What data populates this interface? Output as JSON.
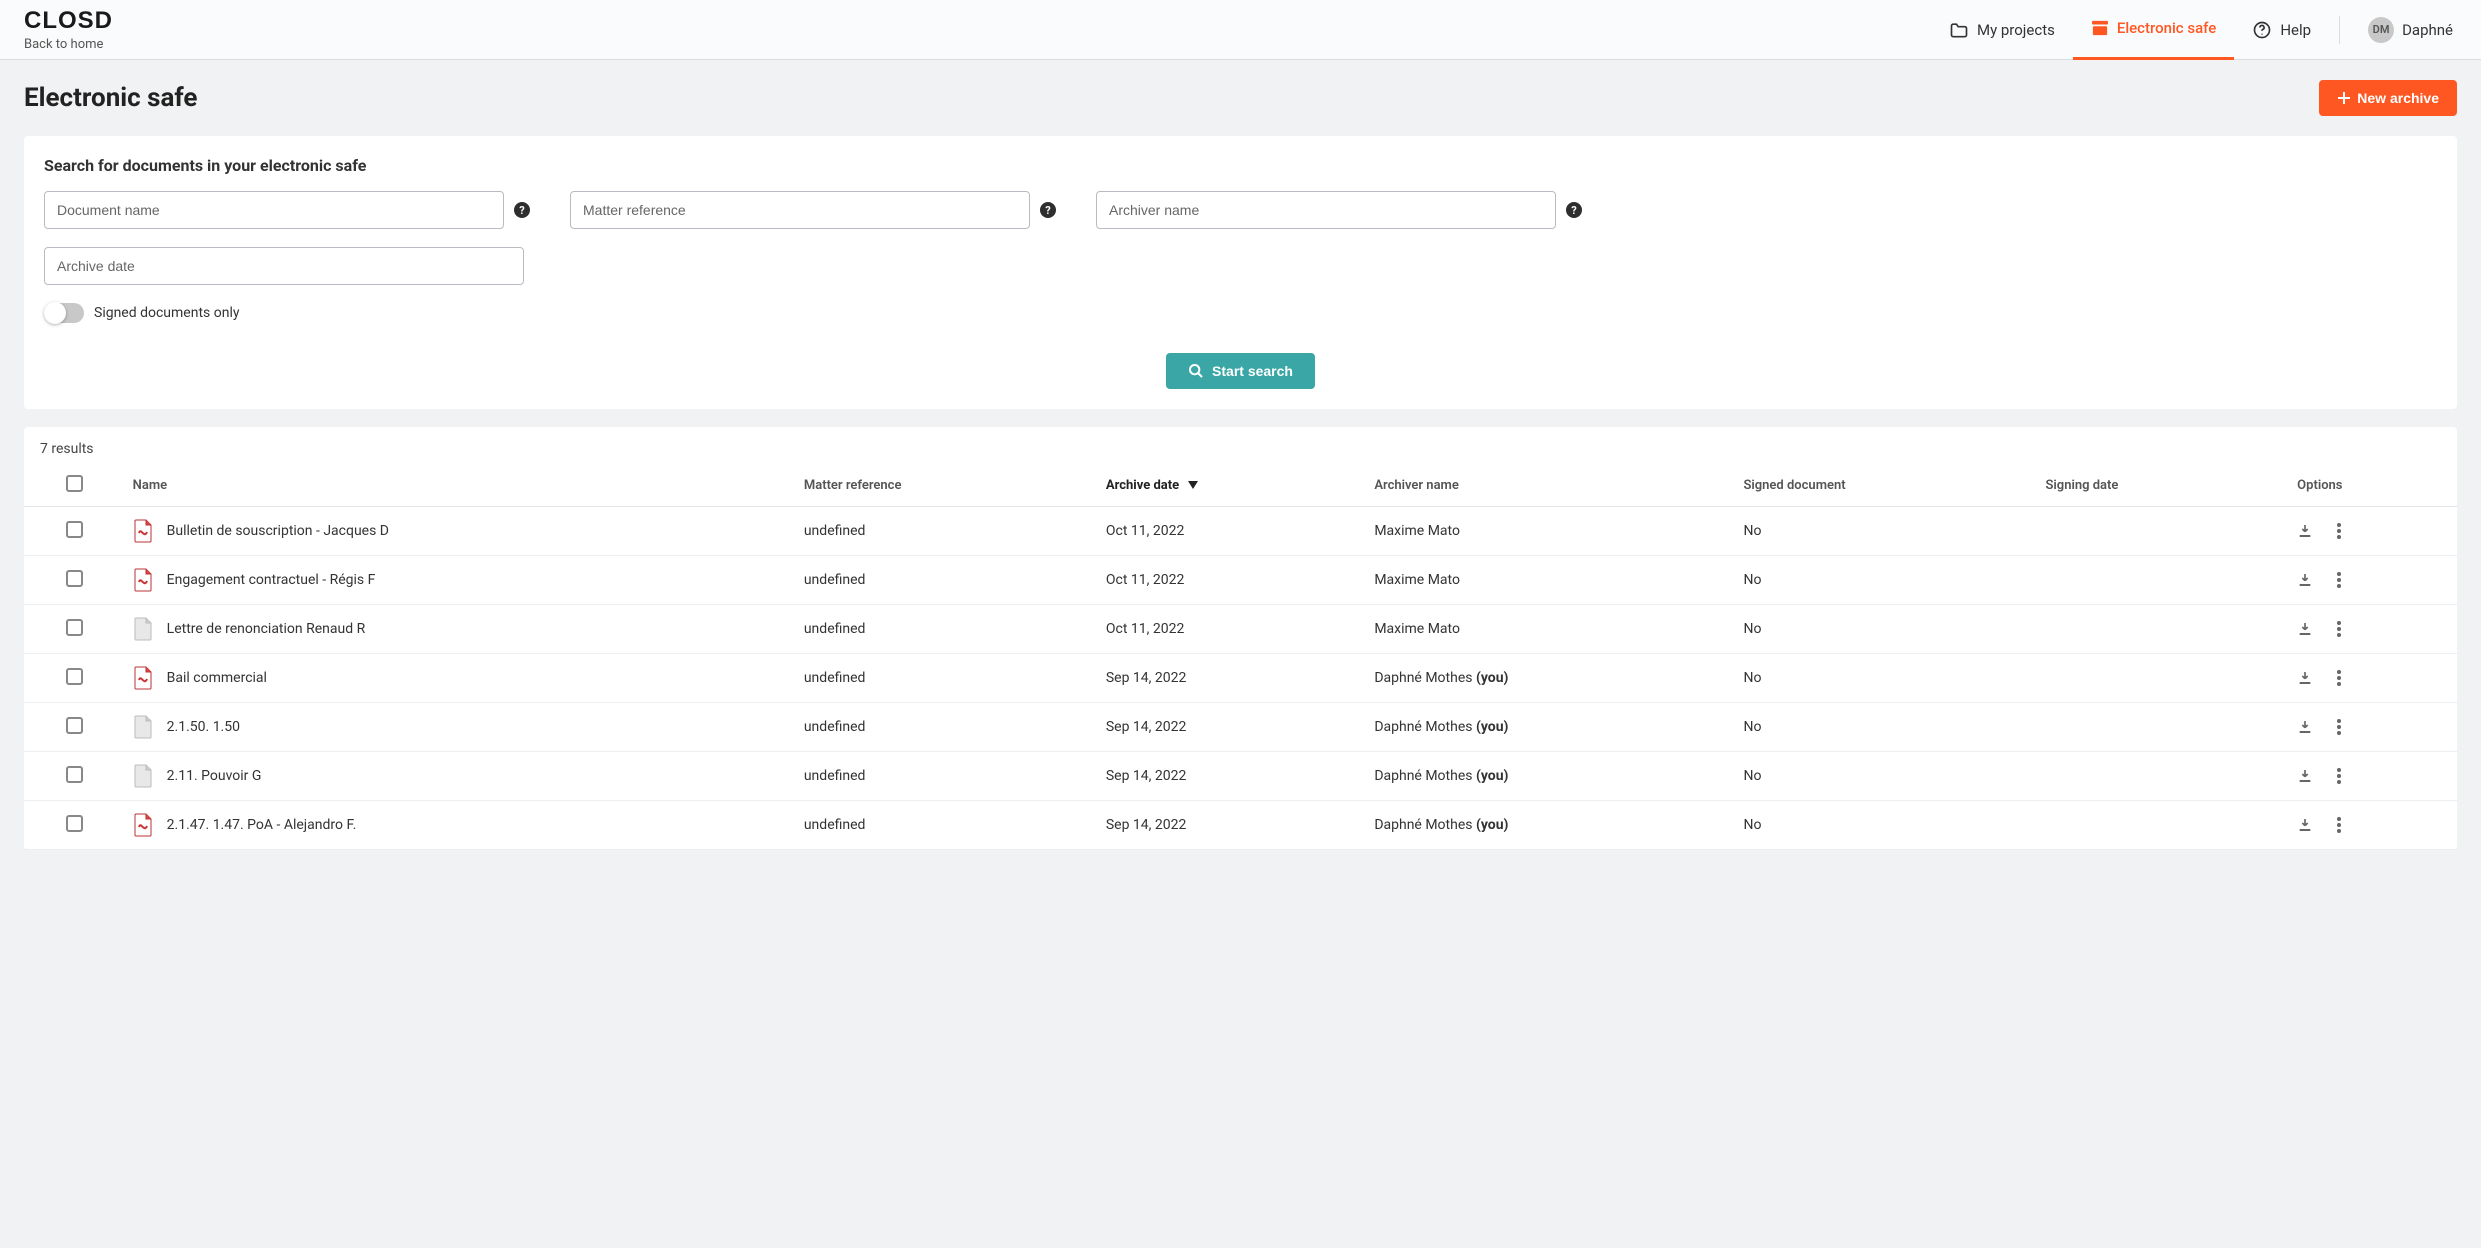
{
  "header": {
    "logo_text": "CLOSD",
    "back_home": "Back to home",
    "nav": {
      "projects": "My projects",
      "esafe": "Electronic safe",
      "help": "Help"
    },
    "user": {
      "initials": "DM",
      "name": "Daphné"
    }
  },
  "page": {
    "title": "Electronic safe",
    "new_archive_btn": "New archive"
  },
  "search": {
    "title": "Search for documents in your electronic safe",
    "doc_name_placeholder": "Document name",
    "matter_ref_placeholder": "Matter reference",
    "archiver_name_placeholder": "Archiver name",
    "archive_date_placeholder": "Archive date",
    "signed_only_label": "Signed documents only",
    "start_btn": "Start search"
  },
  "results": {
    "count_label": "7 results",
    "columns": {
      "name": "Name",
      "matter": "Matter reference",
      "archive_date": "Archive date",
      "archiver": "Archiver name",
      "signed_doc": "Signed document",
      "signing_date": "Signing date",
      "options": "Options"
    },
    "rows": [
      {
        "icon": "pdf",
        "name": "Bulletin de souscription - Jacques D",
        "matter": "undefined",
        "date": "Oct 11, 2022",
        "archiver": "Maxime Mato",
        "you": false,
        "signed": "No",
        "signing": ""
      },
      {
        "icon": "pdf",
        "name": "Engagement contractuel - Régis F",
        "matter": "undefined",
        "date": "Oct 11, 2022",
        "archiver": "Maxime Mato",
        "you": false,
        "signed": "No",
        "signing": ""
      },
      {
        "icon": "doc",
        "name": "Lettre de renonciation Renaud R",
        "matter": "undefined",
        "date": "Oct 11, 2022",
        "archiver": "Maxime Mato",
        "you": false,
        "signed": "No",
        "signing": ""
      },
      {
        "icon": "pdf",
        "name": "Bail commercial",
        "matter": "undefined",
        "date": "Sep 14, 2022",
        "archiver": "Daphné Mothes",
        "you": true,
        "signed": "No",
        "signing": ""
      },
      {
        "icon": "doc",
        "name": "2.1.50. 1.50",
        "matter": "undefined",
        "date": "Sep 14, 2022",
        "archiver": "Daphné Mothes",
        "you": true,
        "signed": "No",
        "signing": ""
      },
      {
        "icon": "doc",
        "name": "2.11. Pouvoir G",
        "matter": "undefined",
        "date": "Sep 14, 2022",
        "archiver": "Daphné Mothes",
        "you": true,
        "signed": "No",
        "signing": ""
      },
      {
        "icon": "pdf",
        "name": "2.1.47. 1.47. PoA - Alejandro F.",
        "matter": "undefined",
        "date": "Sep 14, 2022",
        "archiver": "Daphné Mothes",
        "you": true,
        "signed": "No",
        "signing": ""
      }
    ],
    "you_suffix": "(you)"
  }
}
